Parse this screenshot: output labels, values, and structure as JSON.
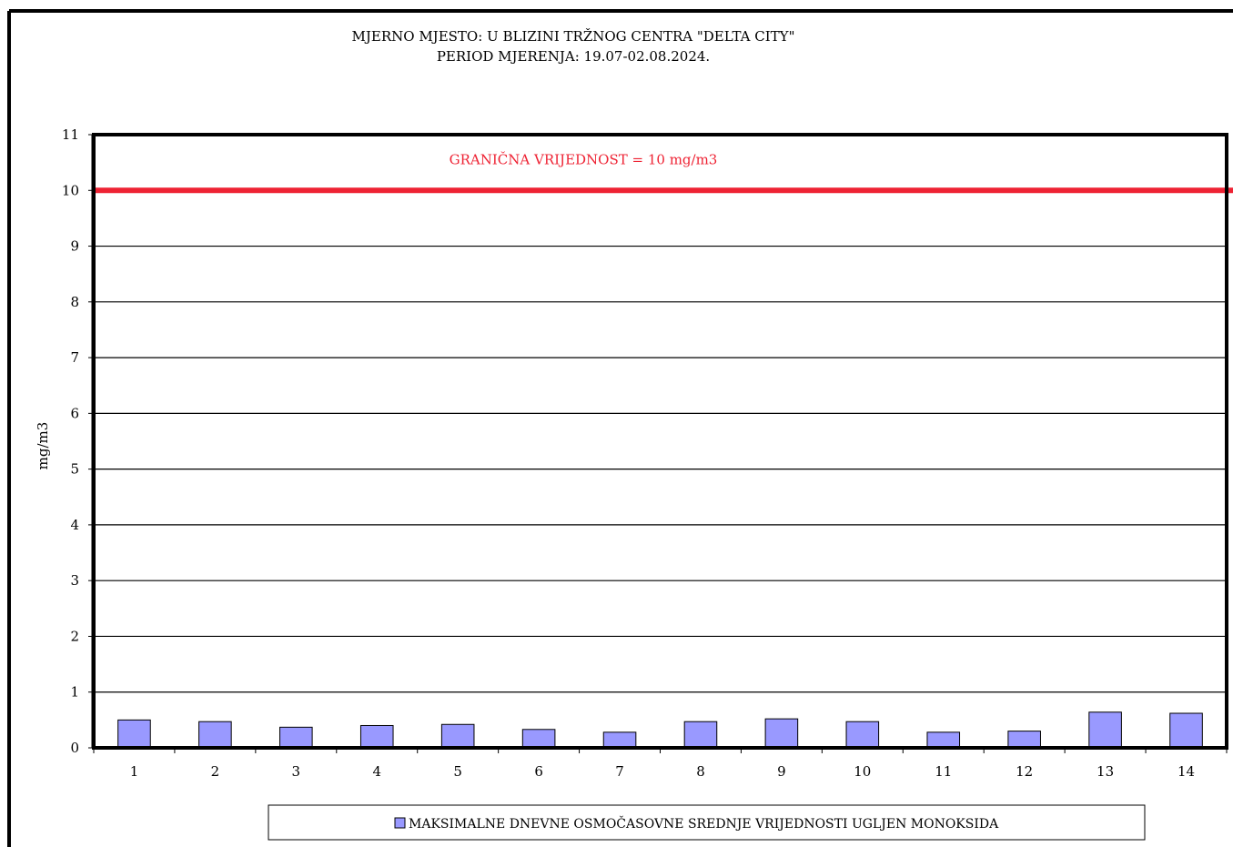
{
  "chart_data": {
    "type": "bar",
    "title": "MJERNO MJESTO: U BLIZINI TRŽNOG CENTRA \"DELTA CITY\"",
    "subtitle": "PERIOD MJERENJA:  19.07-02.08.2024.",
    "xlabel": "",
    "ylabel": "mg/m3",
    "ylim": [
      0,
      11
    ],
    "yticks": [
      0,
      1,
      2,
      3,
      4,
      5,
      6,
      7,
      8,
      9,
      10,
      11
    ],
    "grid": true,
    "categories": [
      "1",
      "2",
      "3",
      "4",
      "5",
      "6",
      "7",
      "8",
      "9",
      "10",
      "11",
      "12",
      "13",
      "14"
    ],
    "series": [
      {
        "name": "MAKSIMALNE DNEVNE OSMOČASOVNE SREDNJE VRIJEDNOSTI UGLJEN MONOKSIDA",
        "color": "#9999ff",
        "values": [
          0.5,
          0.47,
          0.37,
          0.4,
          0.42,
          0.33,
          0.28,
          0.47,
          0.52,
          0.47,
          0.28,
          0.3,
          0.64,
          0.62
        ]
      }
    ],
    "limit_line": {
      "value": 10,
      "label": "GRANIČNA VRIJEDNOST = 10 mg/m3",
      "color": "#ee2233"
    },
    "legend_position": "bottom"
  }
}
